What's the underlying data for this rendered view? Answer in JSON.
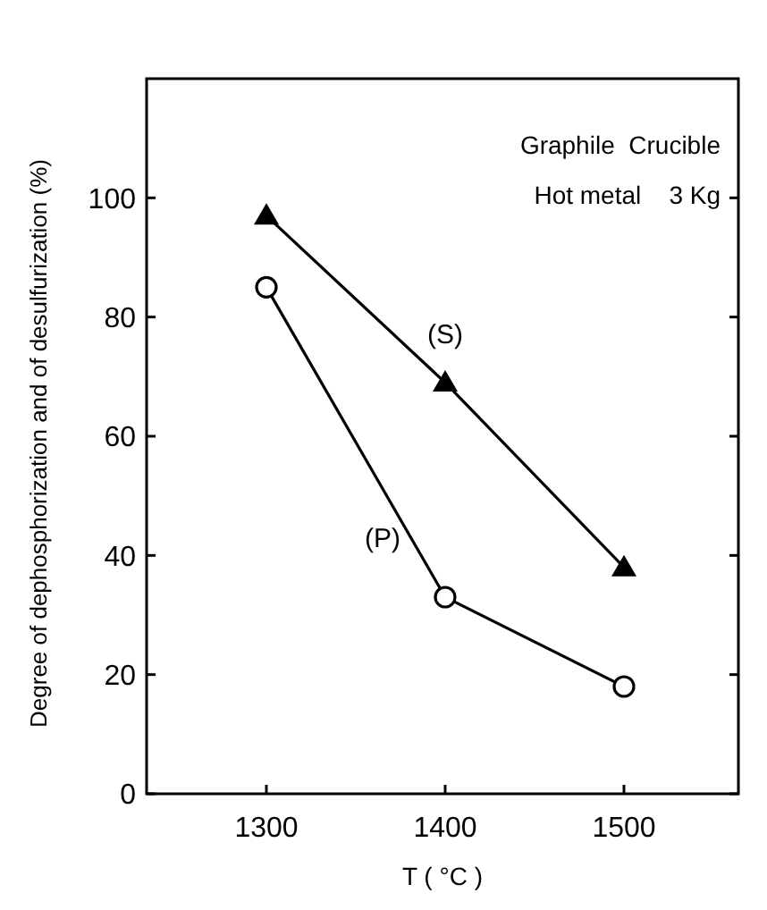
{
  "chart_data": {
    "type": "line",
    "xlabel": "T ( °C )",
    "ylabel": "Degree of dephosphorization and of desulfurization (%)",
    "x": [
      1300,
      1400,
      1500
    ],
    "xlim": [
      1233,
      1564
    ],
    "xticks": [
      1300,
      1400,
      1500
    ],
    "ylim": [
      0,
      120
    ],
    "yticks": [
      0,
      20,
      40,
      60,
      80,
      100
    ],
    "series": [
      {
        "name": "(S)",
        "color": "#000000",
        "values": [
          97,
          69,
          38
        ],
        "marker": "triangle"
      },
      {
        "name": "(P)",
        "color": "#000000",
        "values": [
          85,
          33,
          18
        ],
        "marker": "circle"
      }
    ],
    "annotations": [
      "Graphile  Crucible",
      "Hot metal    3 Kg"
    ]
  }
}
